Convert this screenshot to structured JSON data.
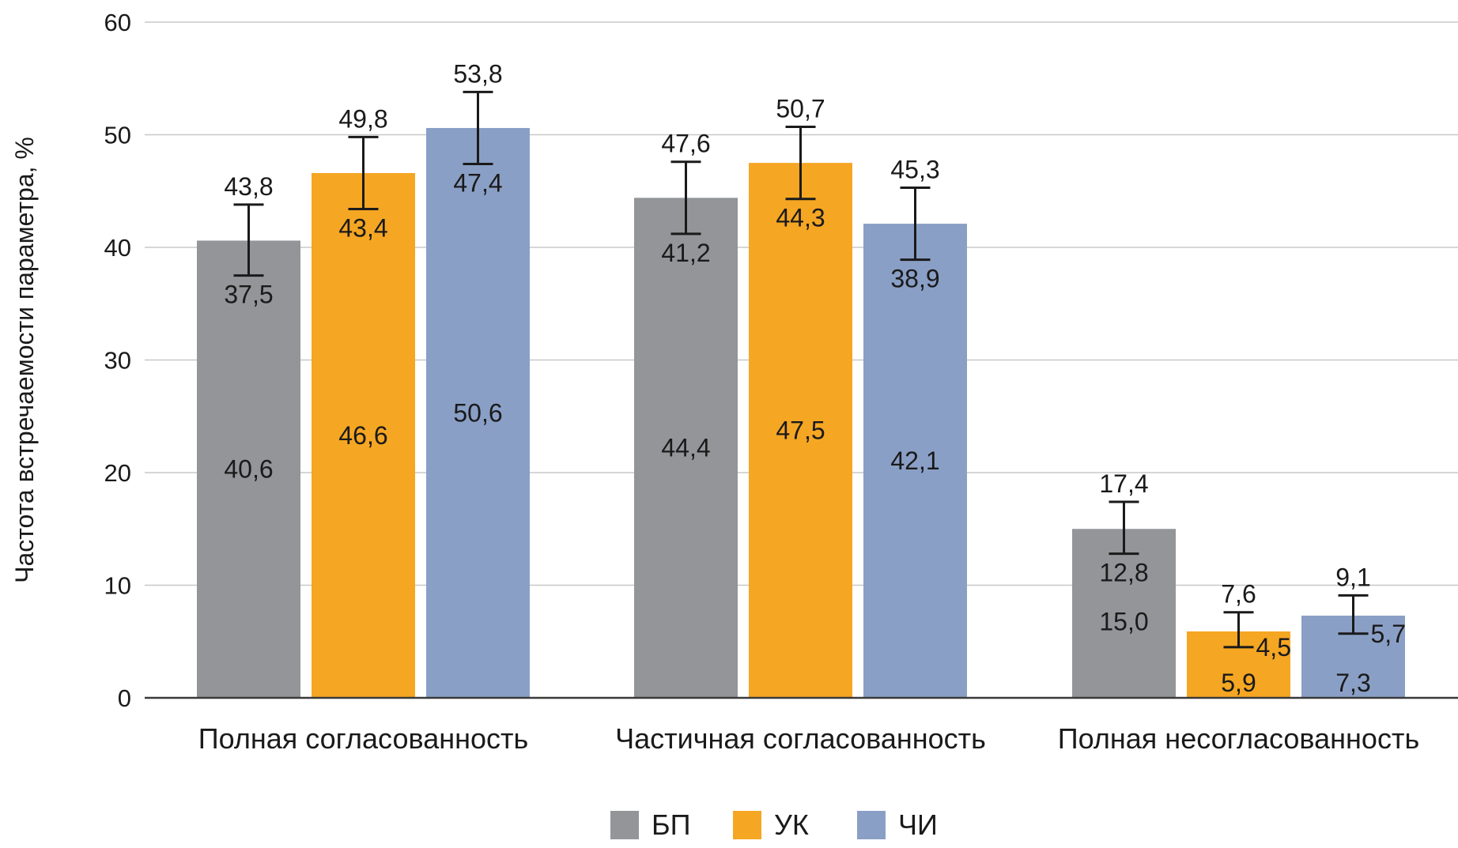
{
  "chart_data": {
    "type": "bar",
    "title": "",
    "xlabel": "",
    "ylabel": "Частота встречаемости параметра, %",
    "ylim": [
      0,
      60
    ],
    "yticks": [
      "0",
      "10",
      "20",
      "30",
      "40",
      "50",
      "60"
    ],
    "ytick_values": [
      0,
      10,
      20,
      30,
      40,
      50,
      60
    ],
    "grid": true,
    "legend_position": "bottom-center",
    "categories": [
      "Полная согласованность",
      "Частичная согласованность",
      "Полная несогласованность"
    ],
    "series": [
      {
        "name": "БП",
        "color": "#939598",
        "values": [
          40.6,
          44.4,
          15.0
        ],
        "value_labels": [
          "40,6",
          "44,4",
          "15,0"
        ],
        "err_low": [
          37.5,
          41.2,
          12.8
        ],
        "err_high": [
          43.8,
          47.6,
          17.4
        ],
        "err_low_labels": [
          "37,5",
          "41,2",
          "12,8"
        ],
        "err_high_labels": [
          "43,8",
          "47,6",
          "17,4"
        ]
      },
      {
        "name": "УК",
        "color": "#f5a623",
        "values": [
          46.6,
          47.5,
          5.9
        ],
        "value_labels": [
          "46,6",
          "47,5",
          "5,9"
        ],
        "err_low": [
          43.4,
          44.3,
          4.5
        ],
        "err_high": [
          49.8,
          50.7,
          7.6
        ],
        "err_low_labels": [
          "43,4",
          "44,3",
          "4,5"
        ],
        "err_high_labels": [
          "49,8",
          "50,7",
          "7,6"
        ]
      },
      {
        "name": "ЧИ",
        "color": "#8a9fc6",
        "values": [
          50.6,
          42.1,
          7.3
        ],
        "value_labels": [
          "50,6",
          "42,1",
          "7,3"
        ],
        "err_low": [
          47.4,
          38.9,
          5.7
        ],
        "err_high": [
          53.8,
          45.3,
          9.1
        ],
        "err_low_labels": [
          "47,4",
          "38,9",
          "5,7"
        ],
        "err_high_labels": [
          "53,8",
          "45,3",
          "9,1"
        ]
      }
    ]
  }
}
